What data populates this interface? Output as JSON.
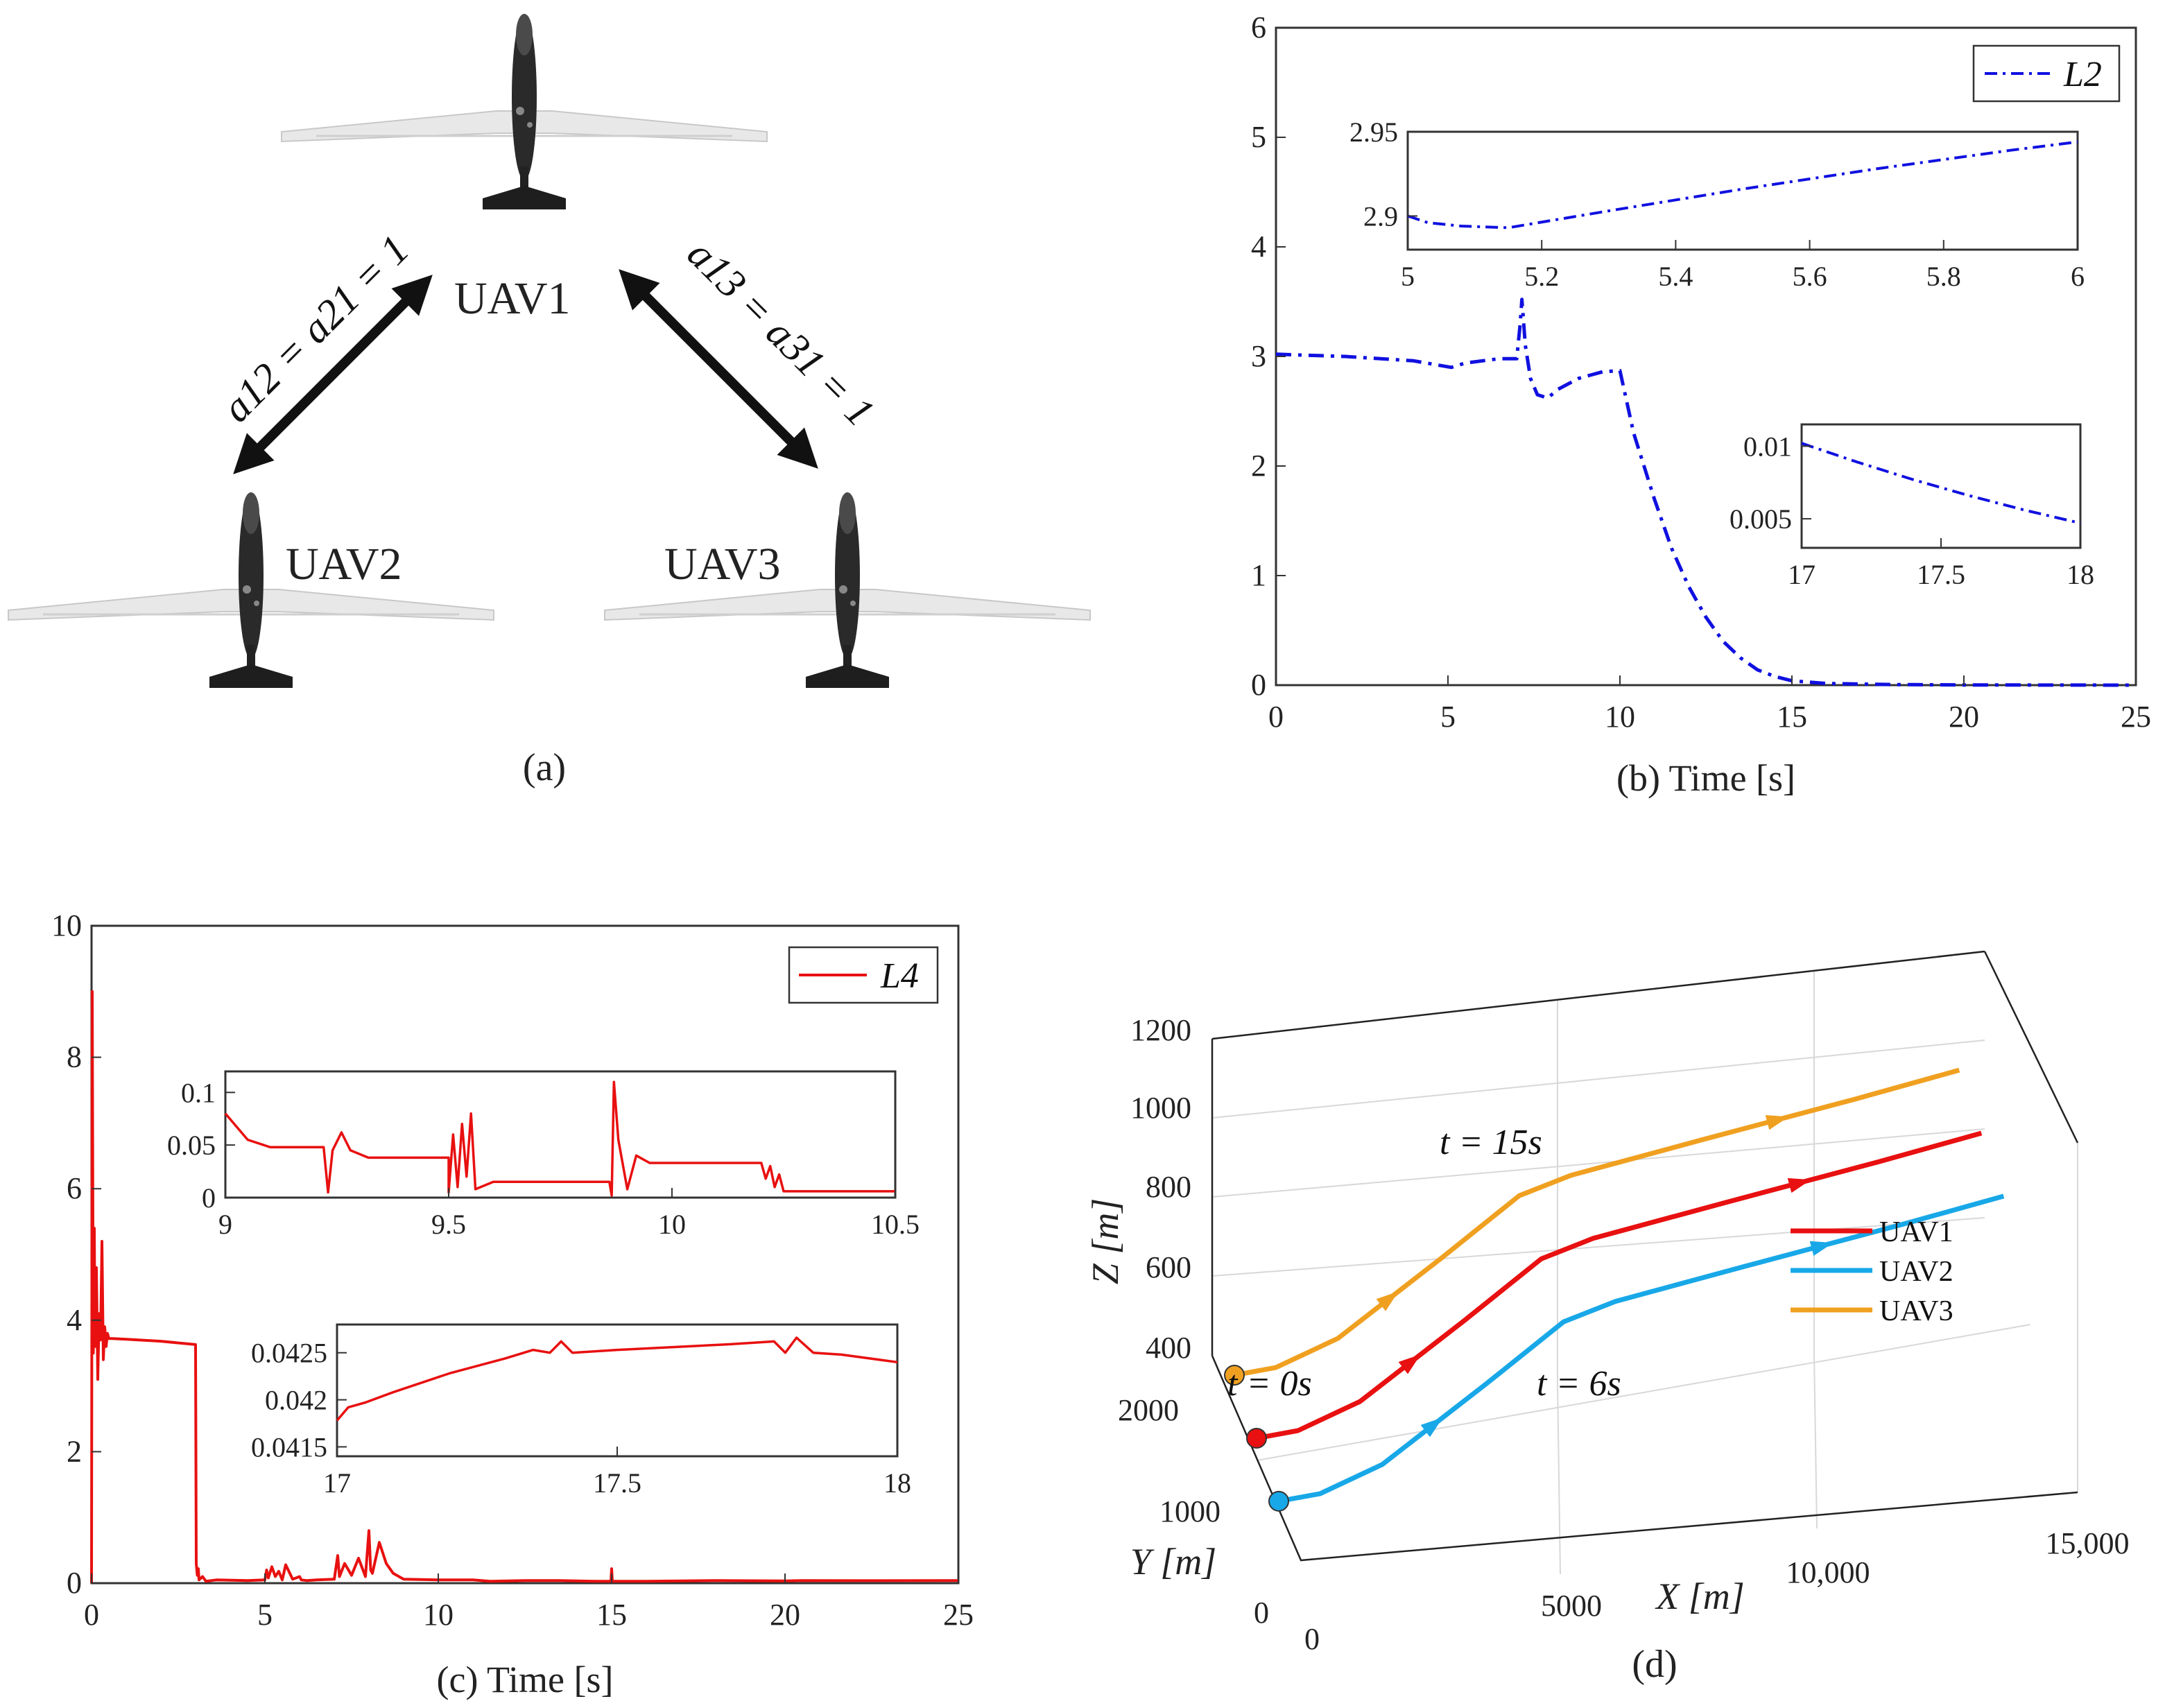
{
  "figure": {
    "panel_a": {
      "caption": "(a)",
      "nodes": [
        "UAV1",
        "UAV2",
        "UAV3"
      ],
      "edge_left": "a12 = a21 = 1",
      "edge_right": "a13 = a31 = 1"
    },
    "colors": {
      "L2": "#1010e0",
      "L4": "#e81010",
      "UAV1": "#e81010",
      "UAV2": "#18a8e8",
      "UAV3": "#f0a020"
    }
  },
  "chart_data": [
    {
      "id": "b",
      "type": "line",
      "title": "",
      "xlabel": "(b) Time [s]",
      "ylabel": "",
      "xlim": [
        0,
        25
      ],
      "ylim": [
        0,
        6
      ],
      "xticks": [
        0,
        5,
        10,
        15,
        20,
        25
      ],
      "yticks": [
        0,
        1,
        2,
        3,
        4,
        5,
        6
      ],
      "legend": {
        "label": "L2",
        "placement": "top-right"
      },
      "series": [
        {
          "name": "L2",
          "style": "dash-dot",
          "x": [
            0,
            2,
            4,
            5.1,
            5.5,
            6.5,
            7.0,
            7.1,
            7.15,
            7.25,
            7.4,
            7.6,
            7.9,
            8.2,
            8.8,
            9.5,
            10.0,
            10.4,
            11,
            11.5,
            12,
            12.5,
            13,
            13.5,
            14,
            14.5,
            15,
            16,
            17,
            18,
            20,
            25
          ],
          "y": [
            3.02,
            3.0,
            2.96,
            2.9,
            2.94,
            2.98,
            2.98,
            3.3,
            3.52,
            3.1,
            2.8,
            2.65,
            2.62,
            2.7,
            2.8,
            2.86,
            2.87,
            2.3,
            1.7,
            1.25,
            0.9,
            0.62,
            0.4,
            0.25,
            0.14,
            0.08,
            0.04,
            0.015,
            0.01,
            0.005,
            0.002,
            0.0
          ]
        }
      ],
      "insets": [
        {
          "xlim": [
            5,
            6
          ],
          "ylim": [
            2.88,
            2.95
          ],
          "xticks": [
            5,
            5.2,
            5.4,
            5.6,
            5.8,
            6
          ],
          "yticks": [
            2.9,
            2.95
          ],
          "ytick_labels": [
            "2.9",
            "2.95"
          ],
          "x": [
            5,
            5.03,
            5.08,
            5.15,
            5.3,
            5.5,
            5.7,
            5.9,
            6.0
          ],
          "y": [
            2.9,
            2.896,
            2.894,
            2.893,
            2.903,
            2.916,
            2.928,
            2.939,
            2.944
          ]
        },
        {
          "xlim": [
            17,
            18
          ],
          "ylim": [
            0.003,
            0.0115
          ],
          "xticks": [
            17,
            17.5,
            18
          ],
          "yticks": [
            0.005,
            0.01
          ],
          "ytick_labels": [
            "0.005",
            "0.01"
          ],
          "x": [
            17,
            17.2,
            17.4,
            17.6,
            17.8,
            18
          ],
          "y": [
            0.0102,
            0.0089,
            0.0077,
            0.0066,
            0.0056,
            0.0047
          ]
        }
      ]
    },
    {
      "id": "c",
      "type": "line",
      "title": "",
      "xlabel": "(c) Time [s]",
      "ylabel": "",
      "xlim": [
        0,
        25
      ],
      "ylim": [
        0,
        10
      ],
      "xticks": [
        0,
        5,
        10,
        15,
        20,
        25
      ],
      "yticks": [
        0,
        2,
        4,
        6,
        8,
        10
      ],
      "legend": {
        "label": "L4",
        "placement": "top-right"
      },
      "series": [
        {
          "name": "L4",
          "style": "solid",
          "x": [
            0,
            0.02,
            0.05,
            0.08,
            0.1,
            0.14,
            0.18,
            0.22,
            0.26,
            0.3,
            0.34,
            0.38,
            0.42,
            0.46,
            0.5,
            0.6,
            1.0,
            2.0,
            3.0,
            3.02,
            3.05,
            3.08,
            3.1,
            3.2,
            3.3,
            3.6,
            4.5,
            5.0,
            5.05,
            5.1,
            5.2,
            5.3,
            5.4,
            5.5,
            5.6,
            5.8,
            6.0,
            6.05,
            6.2,
            6.5,
            7.0,
            7.1,
            7.15,
            7.3,
            7.5,
            7.7,
            7.9,
            8.0,
            8.05,
            8.1,
            8.3,
            8.5,
            8.7,
            9.0,
            10.0,
            11.0,
            11.5,
            12.5,
            13.5,
            14.5,
            14.98,
            15.0,
            15.02,
            16,
            18,
            20,
            20.5,
            22,
            25
          ],
          "y": [
            0,
            9.0,
            3.5,
            5.4,
            3.6,
            4.8,
            3.1,
            4.1,
            3.7,
            5.2,
            3.4,
            3.9,
            3.6,
            3.8,
            3.72,
            3.72,
            3.71,
            3.68,
            3.63,
            0.3,
            0.12,
            0.22,
            0.05,
            0.1,
            0.03,
            0.05,
            0.04,
            0.05,
            0.2,
            0.08,
            0.25,
            0.1,
            0.18,
            0.05,
            0.28,
            0.06,
            0.1,
            0.05,
            0.04,
            0.05,
            0.06,
            0.42,
            0.1,
            0.3,
            0.12,
            0.38,
            0.1,
            0.8,
            0.2,
            0.15,
            0.62,
            0.3,
            0.15,
            0.06,
            0.05,
            0.05,
            0.03,
            0.04,
            0.04,
            0.03,
            0.03,
            0.22,
            0.03,
            0.03,
            0.04,
            0.035,
            0.04,
            0.038,
            0.04
          ]
        }
      ],
      "insets": [
        {
          "xlim": [
            9,
            10.5
          ],
          "ylim": [
            0,
            0.12
          ],
          "xticks": [
            9,
            9.5,
            10,
            10.5
          ],
          "yticks": [
            0,
            0.05,
            0.1
          ],
          "ytick_labels": [
            "0",
            "0.05",
            "0.1"
          ],
          "x": [
            9,
            9.05,
            9.1,
            9.2,
            9.22,
            9.23,
            9.24,
            9.26,
            9.28,
            9.32,
            9.5,
            9.5,
            9.51,
            9.52,
            9.53,
            9.54,
            9.55,
            9.56,
            9.6,
            9.86,
            9.865,
            9.87,
            9.88,
            9.9,
            9.92,
            9.95,
            10.2,
            10.21,
            10.22,
            10.23,
            10.24,
            10.25,
            10.27,
            10.5
          ],
          "y": [
            0.08,
            0.055,
            0.048,
            0.048,
            0.048,
            0.005,
            0.045,
            0.062,
            0.045,
            0.038,
            0.038,
            0.005,
            0.06,
            0.01,
            0.07,
            0.02,
            0.08,
            0.008,
            0.015,
            0.015,
            0.002,
            0.11,
            0.055,
            0.008,
            0.04,
            0.033,
            0.033,
            0.018,
            0.03,
            0.01,
            0.022,
            0.006,
            0.006,
            0.006
          ]
        },
        {
          "xlim": [
            17,
            18
          ],
          "ylim": [
            0.0414,
            0.0428
          ],
          "xticks": [
            17,
            17.5,
            18
          ],
          "yticks": [
            0.0415,
            0.042,
            0.0425
          ],
          "ytick_labels": [
            "0.0415",
            "0.042",
            "0.0425"
          ],
          "x": [
            17,
            17.02,
            17.05,
            17.1,
            17.2,
            17.3,
            17.35,
            17.38,
            17.4,
            17.42,
            17.5,
            17.7,
            17.78,
            17.8,
            17.82,
            17.85,
            17.9,
            18
          ],
          "y": [
            0.04178,
            0.04192,
            0.04197,
            0.04208,
            0.04228,
            0.04244,
            0.04253,
            0.0425,
            0.04262,
            0.0425,
            0.04253,
            0.04259,
            0.04262,
            0.0425,
            0.04266,
            0.0425,
            0.04248,
            0.0424
          ]
        }
      ]
    },
    {
      "id": "d",
      "type": "line",
      "title": "",
      "xlabel": "X [m]",
      "ylabel": "Y [m]",
      "zlabel": "Z [m]",
      "caption": "(d)",
      "xlim": [
        0,
        15000
      ],
      "ylim": [
        0,
        2000
      ],
      "zlim": [
        400,
        1200
      ],
      "xticks": [
        0,
        5000,
        10000,
        15000
      ],
      "xtick_labels": [
        "0",
        "5000",
        "10,000",
        "15,000"
      ],
      "yticks": [
        0,
        1000,
        2000
      ],
      "ytick_labels": [
        "0",
        "1000",
        "2000"
      ],
      "zticks": [
        400,
        600,
        800,
        1000,
        1200
      ],
      "ztick_labels": [
        "400",
        "600",
        "800",
        "1000",
        "1200"
      ],
      "legend": {
        "labels": [
          "UAV1",
          "UAV2",
          "UAV3"
        ],
        "placement": "right"
      },
      "annotations": [
        "t = 0s",
        "t = 6s",
        "t = 15s"
      ],
      "series": [
        {
          "name": "UAV1",
          "x": [
            0,
            800,
            2000,
            4000,
            5500,
            6500,
            9000,
            12000,
            14000
          ],
          "y": [
            1000,
            1000,
            1000,
            1000,
            1000,
            1000,
            1000,
            1000,
            1000
          ],
          "z": [
            450,
            460,
            520,
            700,
            840,
            880,
            940,
            1010,
            1060
          ]
        },
        {
          "name": "UAV2",
          "x": [
            0,
            800,
            2000,
            4000,
            5500,
            6500,
            9000,
            12000,
            14000
          ],
          "y": [
            500,
            500,
            500,
            500,
            500,
            500,
            500,
            500,
            500
          ],
          "z": [
            420,
            430,
            490,
            670,
            810,
            850,
            910,
            980,
            1030
          ]
        },
        {
          "name": "UAV3",
          "x": [
            0,
            800,
            2000,
            4000,
            5500,
            6500,
            9000,
            12000,
            14000
          ],
          "y": [
            1500,
            1500,
            1500,
            1500,
            1500,
            1500,
            1500,
            1500,
            1500
          ],
          "z": [
            480,
            490,
            550,
            730,
            870,
            910,
            970,
            1040,
            1090
          ]
        }
      ]
    }
  ]
}
